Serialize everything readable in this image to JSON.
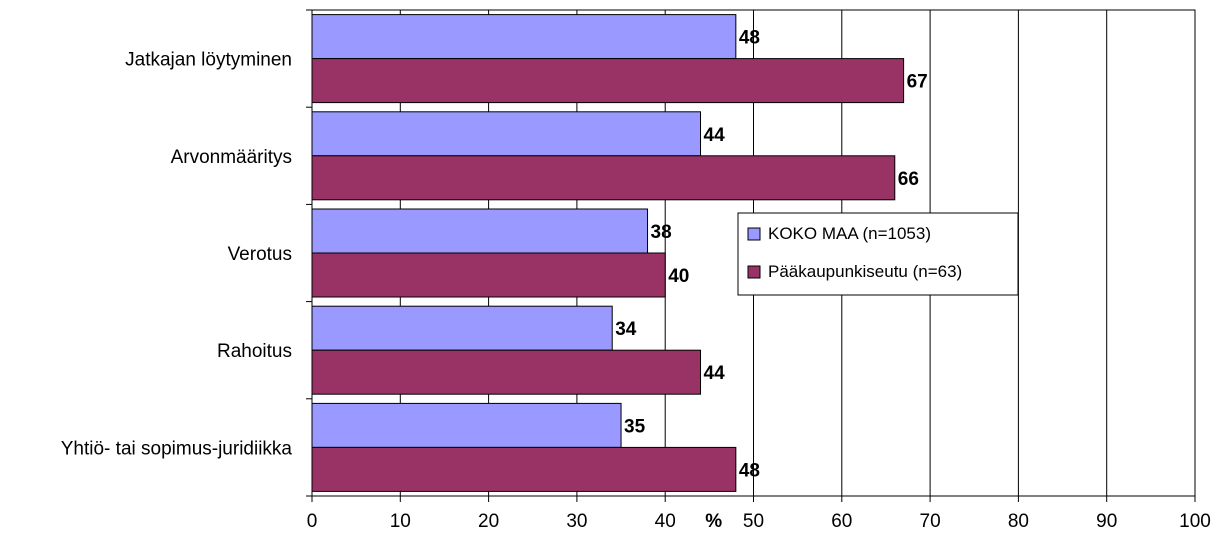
{
  "chart_data": {
    "type": "bar",
    "orientation": "horizontal",
    "categories": [
      "Jatkajan löytyminen",
      "Arvonmääritys",
      "Verotus",
      "Rahoitus",
      "Yhtiö- tai sopimus-juridiikka"
    ],
    "series": [
      {
        "name": "KOKO MAA (n=1053)",
        "values": [
          48,
          44,
          38,
          34,
          35
        ],
        "color": "#9999ff"
      },
      {
        "name": "Pääkaupunkiseutu (n=63)",
        "values": [
          67,
          66,
          40,
          44,
          48
        ],
        "color": "#993366"
      }
    ],
    "xlabel": "%",
    "xlim": [
      0,
      100
    ],
    "xticks": [
      "0",
      "10",
      "20",
      "30",
      "40",
      "50",
      "60",
      "70",
      "80",
      "90",
      "100"
    ],
    "grid": true,
    "legend_position": "middle-right"
  }
}
